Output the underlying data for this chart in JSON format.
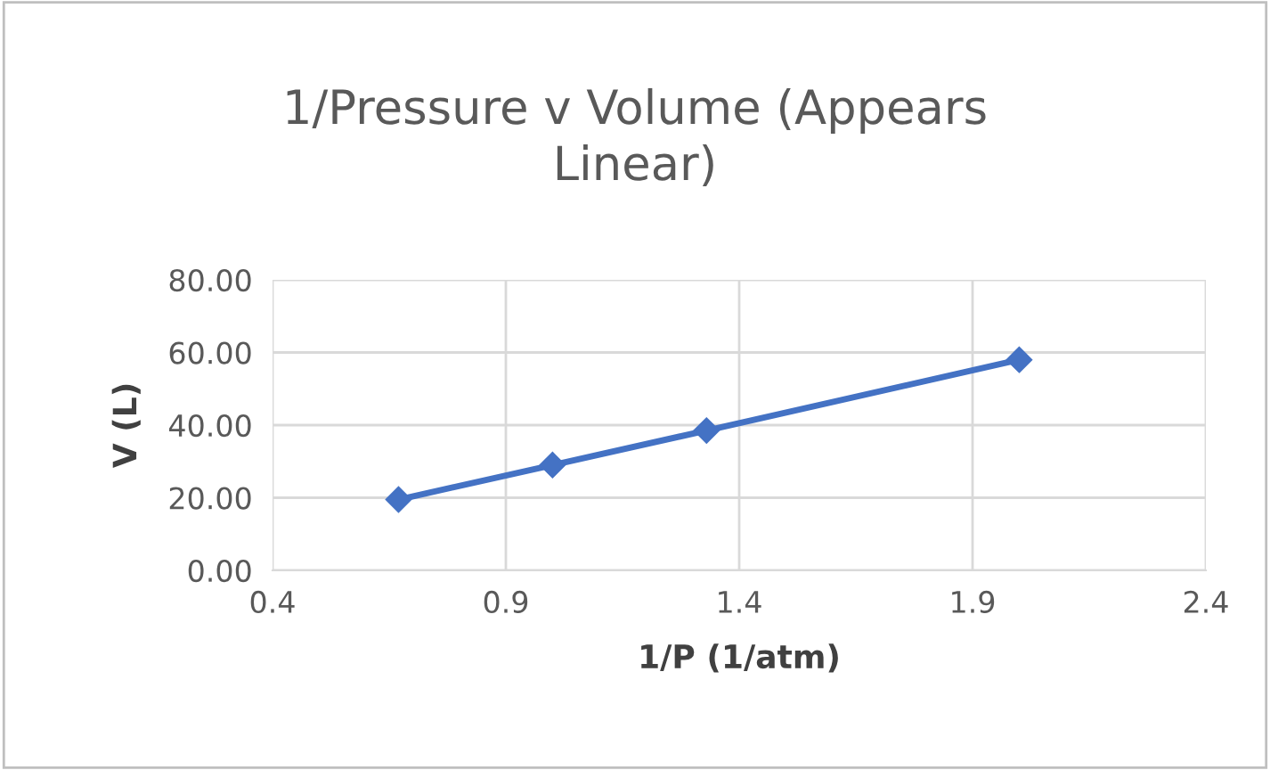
{
  "chart_data": {
    "type": "line",
    "title": "1/Pressure v Volume (Appears\nLinear)",
    "xlabel": "1/P (1/atm)",
    "ylabel": "V (L)",
    "x": [
      0.67,
      1.0,
      1.33,
      2.0
    ],
    "series": [
      {
        "color": "#4472c4",
        "values": [
          19.5,
          29.0,
          38.5,
          58.0
        ]
      }
    ],
    "xlim": [
      0.4,
      2.4
    ],
    "xticks": [
      0.4,
      0.9,
      1.4,
      1.9,
      2.4
    ],
    "ylim": [
      0,
      80
    ],
    "yticks": [
      {
        "value": 0,
        "label": "0.00"
      },
      {
        "value": 20,
        "label": "20.00"
      },
      {
        "value": 40,
        "label": "40.00"
      },
      {
        "value": 60,
        "label": "60.00"
      },
      {
        "value": 80,
        "label": "80.00"
      }
    ],
    "grid": true,
    "marker": "diamond",
    "line_style": "solid"
  }
}
